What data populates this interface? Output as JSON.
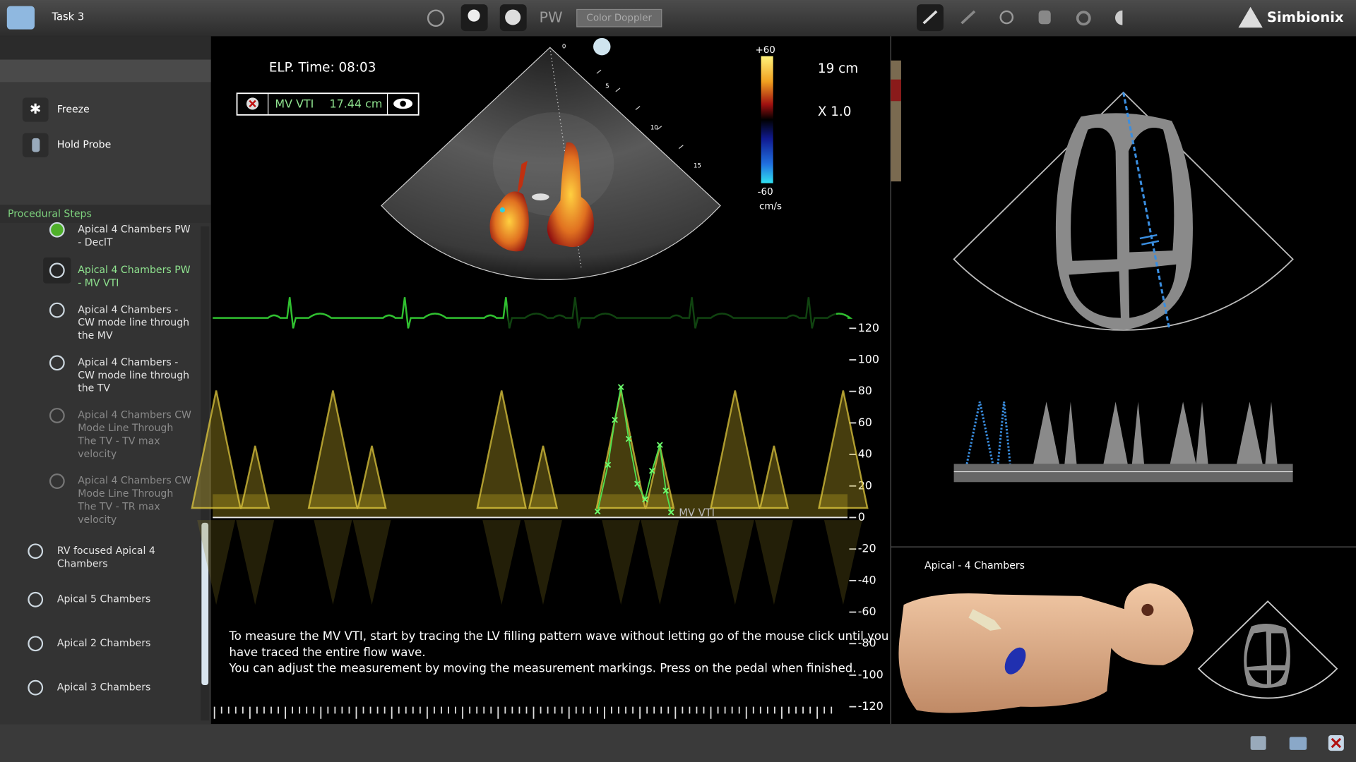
{
  "header": {
    "task": "Task 3",
    "mode": "PW",
    "color_doppler": "Color Doppler",
    "brand": "Simbionix"
  },
  "sidebar": {
    "freeze": "Freeze",
    "hold_probe": "Hold Probe",
    "steps_title": "Procedural Steps",
    "steps": [
      {
        "label": "Apical 4 Chambers PW - DeclT",
        "state": "done"
      },
      {
        "label": "Apical 4 Chambers PW - MV VTI",
        "state": "active"
      },
      {
        "label": "Apical 4 Chambers - CW mode line through the MV",
        "state": "pending"
      },
      {
        "label": "Apical 4 Chambers - CW mode line through the TV",
        "state": "pending"
      },
      {
        "label": "Apical 4 Chambers CW Mode Line Through The TV - TV max velocity",
        "state": "disabled"
      },
      {
        "label": "Apical 4 Chambers CW Mode Line Through The TV - TR max velocity",
        "state": "disabled"
      },
      {
        "label": "RV focused Apical 4 Chambers",
        "state": "pending"
      },
      {
        "label": "Apical 5 Chambers",
        "state": "pending"
      },
      {
        "label": "Apical 2 Chambers",
        "state": "pending"
      },
      {
        "label": "Apical 3 Chambers",
        "state": "pending"
      }
    ]
  },
  "echo": {
    "elapsed": "ELP. Time: 08:03",
    "measure_name": "MV VTI",
    "measure_value": "17.44 cm",
    "depth": "19 cm",
    "zoom": "X 1.0",
    "depth_ticks": [
      "0",
      "5",
      "10",
      "15"
    ],
    "color_scale": {
      "max": "+60",
      "min": "-60",
      "unit": "cm/s"
    }
  },
  "doppler": {
    "ylim": [
      -120,
      120
    ],
    "yticks": [
      120,
      100,
      80,
      60,
      40,
      20,
      0,
      -20,
      -40,
      -60,
      -80,
      -100,
      -120
    ],
    "trace_label": "MV VTI"
  },
  "instructions": [
    "To measure the MV VTI, start by tracing the LV filling pattern wave without letting go of the mouse click until you",
    "have traced the entire flow wave.",
    "You can adjust the measurement by moving the measurement markings. Press on the pedal when finished."
  ],
  "view_label": "Apical - 4 Chambers"
}
